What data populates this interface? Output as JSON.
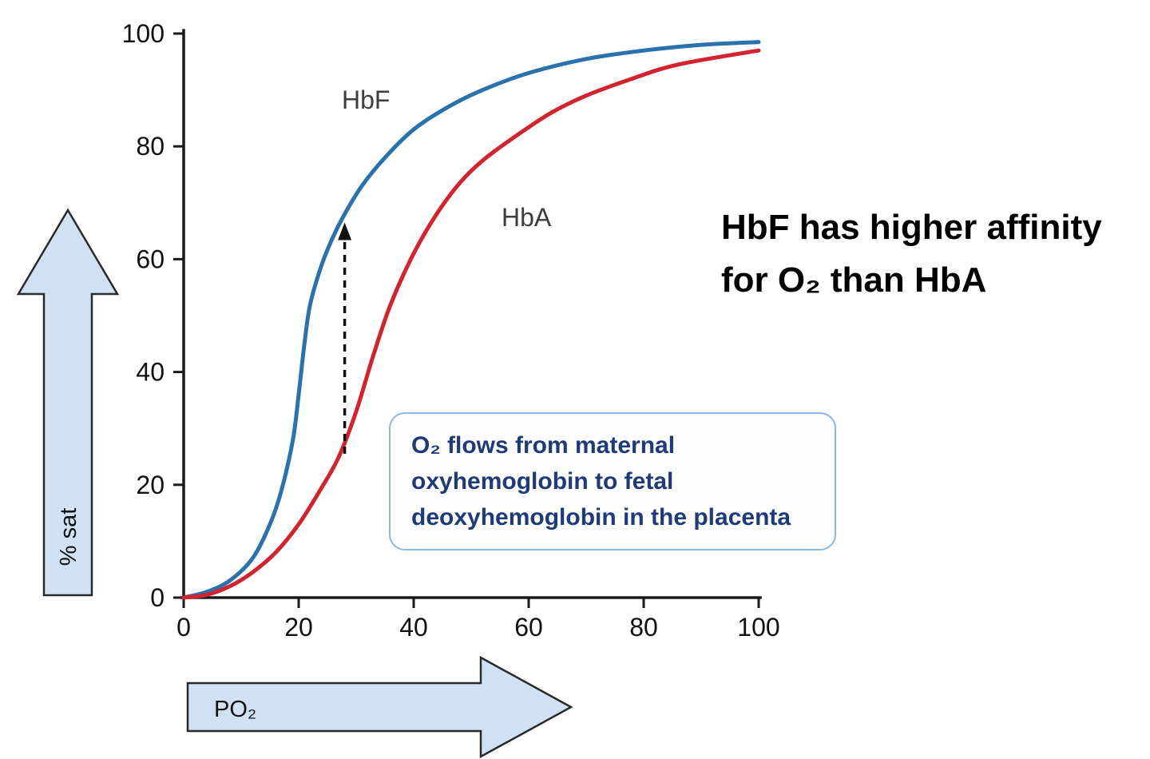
{
  "page": {
    "background": "#ffffff"
  },
  "chart_data": {
    "type": "line",
    "title": "",
    "xlabel": "PO₂",
    "ylabel": "% sat",
    "xlim": [
      0,
      100
    ],
    "ylim": [
      0,
      100
    ],
    "x_ticks": [
      0,
      20,
      40,
      60,
      80,
      100
    ],
    "y_ticks": [
      0,
      20,
      40,
      60,
      80,
      100
    ],
    "grid": false,
    "legend": "inline-curve-labels",
    "series": [
      {
        "name": "HbF",
        "color": "#2a72ae",
        "points": [
          [
            0,
            0
          ],
          [
            4,
            1
          ],
          [
            8,
            3
          ],
          [
            12,
            7
          ],
          [
            15,
            13
          ],
          [
            17,
            19
          ],
          [
            19,
            28
          ],
          [
            20,
            36
          ],
          [
            21,
            45
          ],
          [
            22,
            52
          ],
          [
            24,
            59
          ],
          [
            26,
            64
          ],
          [
            28,
            68
          ],
          [
            31,
            73
          ],
          [
            35,
            78
          ],
          [
            40,
            83
          ],
          [
            46,
            87
          ],
          [
            52,
            90
          ],
          [
            60,
            93
          ],
          [
            70,
            95.5
          ],
          [
            80,
            97
          ],
          [
            90,
            98
          ],
          [
            100,
            98.5
          ]
        ]
      },
      {
        "name": "HbA",
        "color": "#d2232e",
        "points": [
          [
            0,
            0
          ],
          [
            4,
            0.5
          ],
          [
            8,
            2
          ],
          [
            12,
            4.5
          ],
          [
            16,
            8
          ],
          [
            20,
            13
          ],
          [
            24,
            19.5
          ],
          [
            27,
            25
          ],
          [
            30,
            33
          ],
          [
            33,
            43
          ],
          [
            36,
            52
          ],
          [
            40,
            61
          ],
          [
            44,
            68
          ],
          [
            48,
            73.5
          ],
          [
            52,
            77.5
          ],
          [
            58,
            82
          ],
          [
            64,
            86
          ],
          [
            70,
            89
          ],
          [
            78,
            92
          ],
          [
            86,
            94.5
          ],
          [
            100,
            97
          ]
        ]
      }
    ],
    "transfer_arrow": {
      "x": 28,
      "from_sat": 25.5,
      "to_sat": 66.5,
      "color": "#111111",
      "style": "dashed"
    }
  },
  "annotations": {
    "heading": {
      "lines": [
        "HbF has higher affinity",
        "for O₂ than HbA"
      ],
      "color": "#000000"
    },
    "note_box": {
      "lines": [
        "O₂ flows from maternal",
        "oxyhemoglobin to fetal",
        "deoxyhemoglobin in the placenta"
      ],
      "text_color": "#1e3a78",
      "border_color": "#8ab9e6"
    }
  },
  "decor": {
    "arrow_fill": "#cfe1f2",
    "arrow_stroke": "#2a2a2a"
  }
}
